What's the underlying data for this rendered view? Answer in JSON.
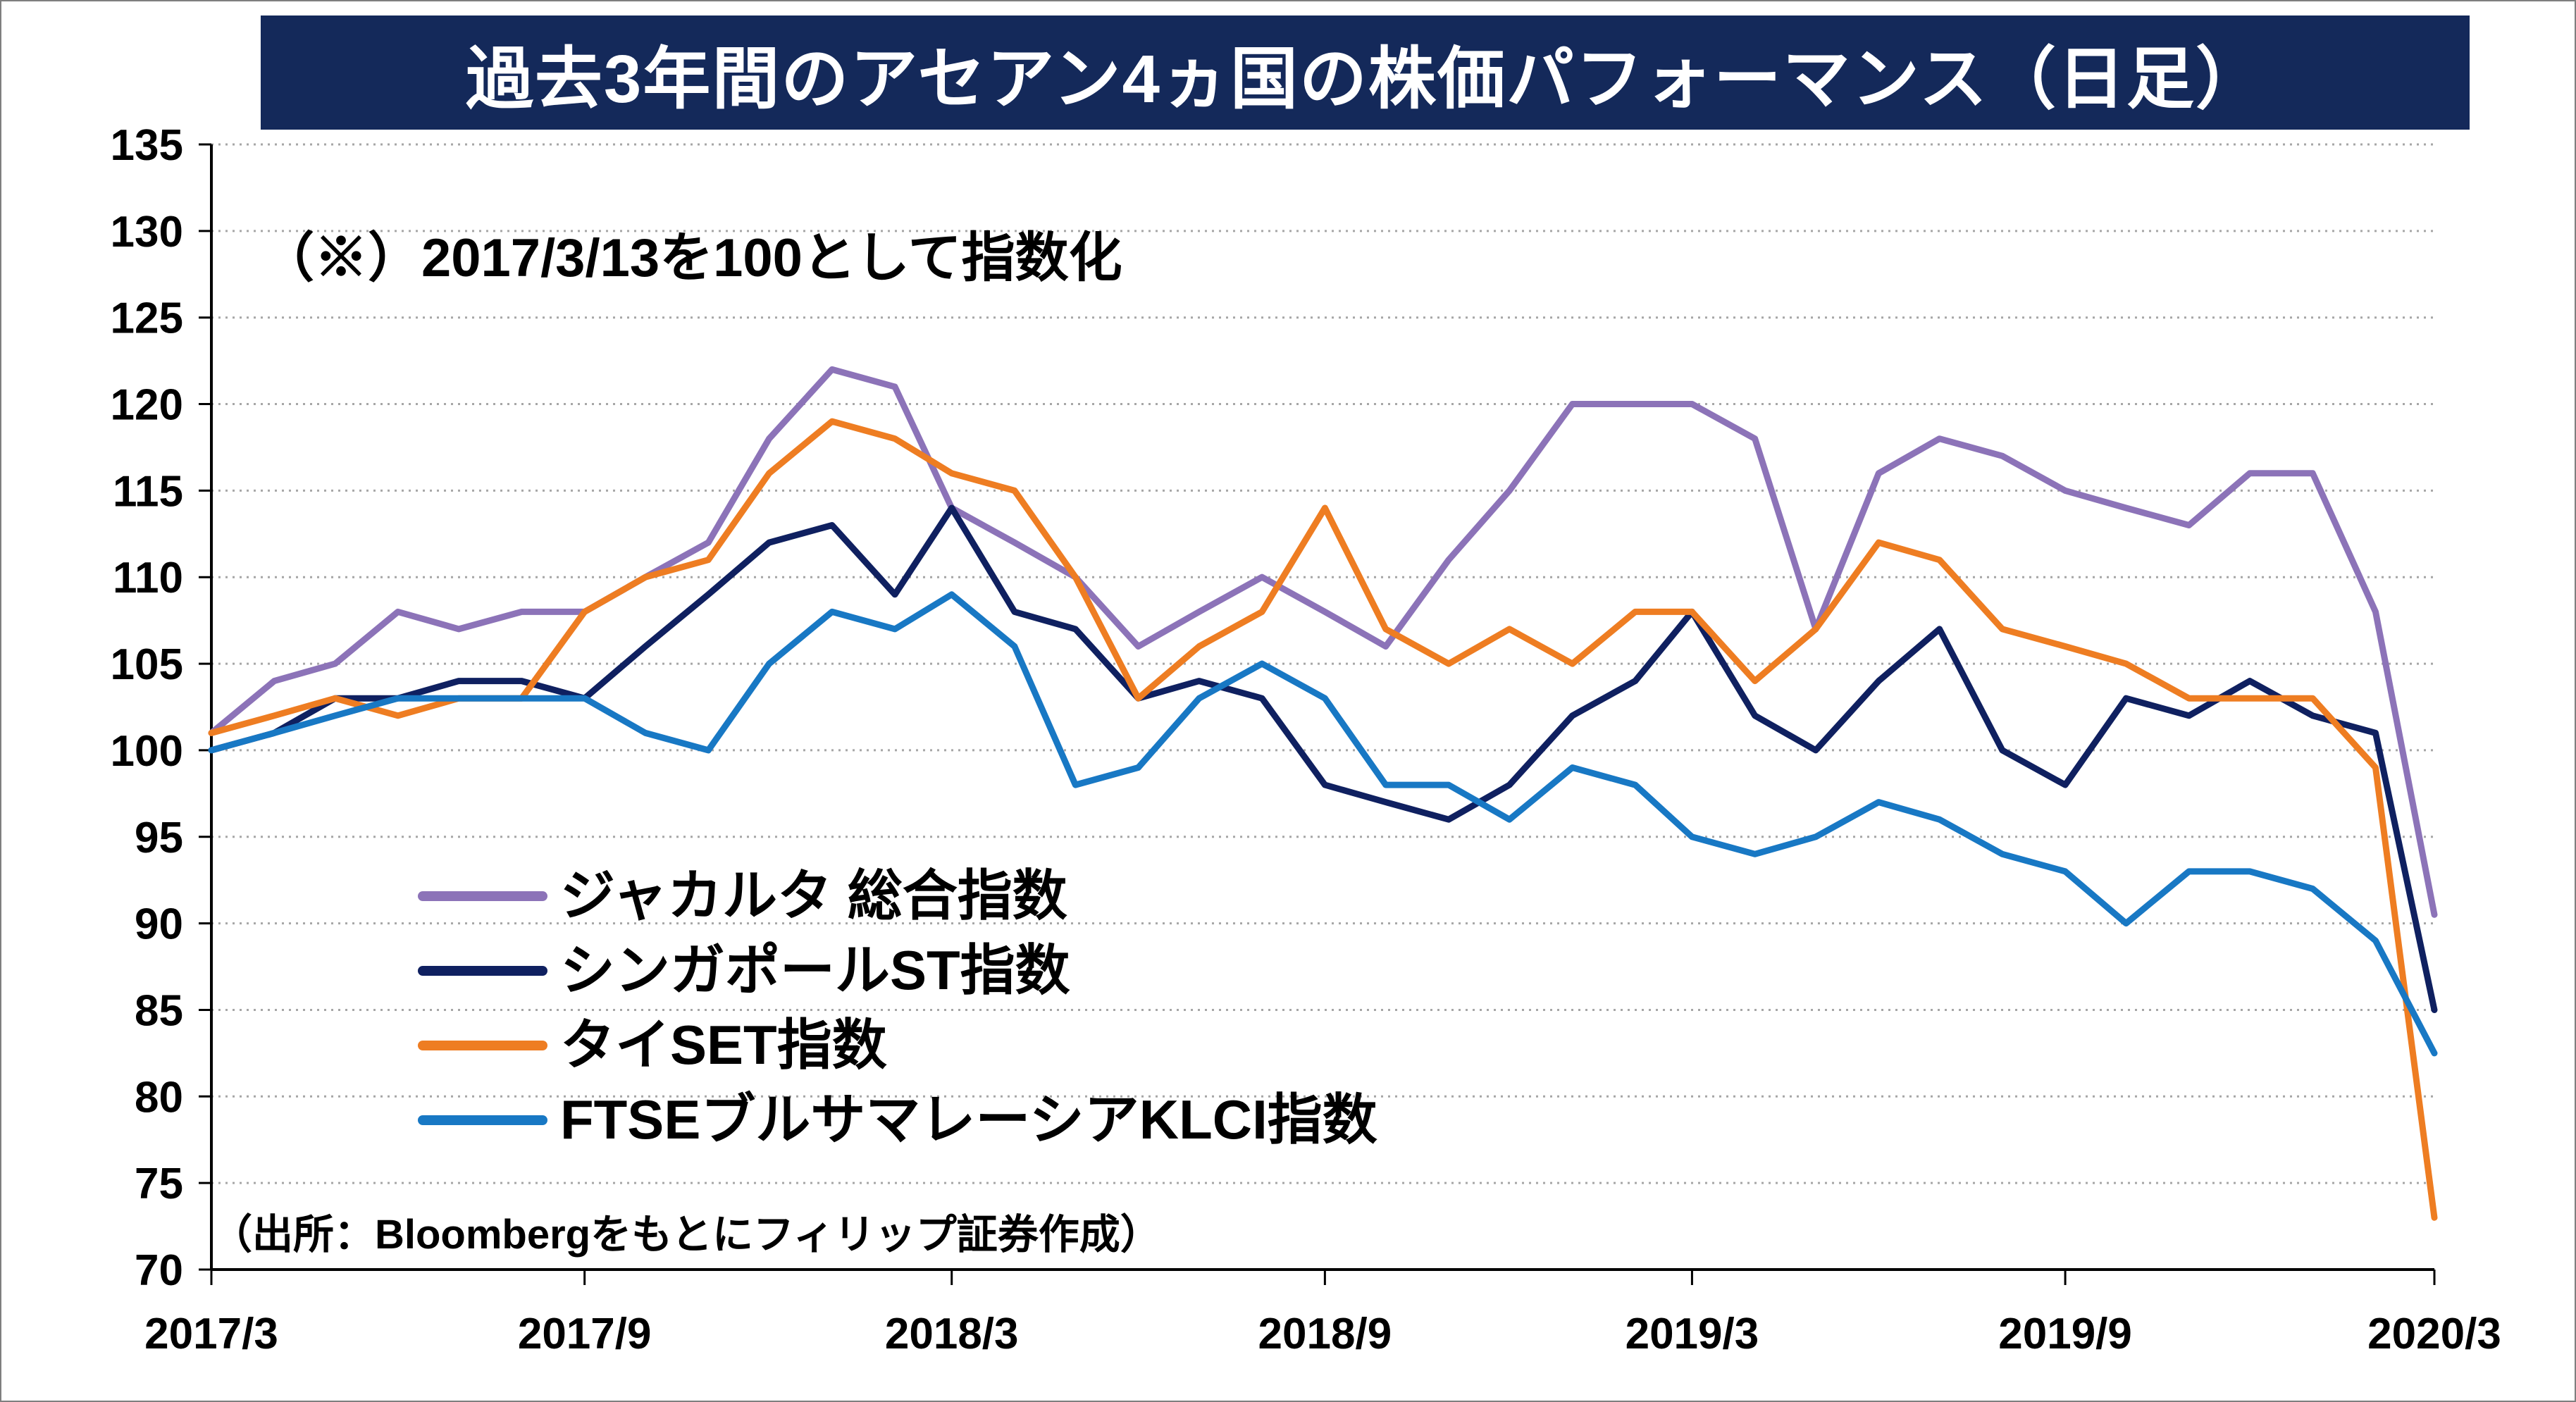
{
  "chart_data": {
    "type": "line",
    "title": "過去3年間のアセアン4ヵ国の株価パフォーマンス（日足）",
    "note": "（※）2017/3/13を100として指数化",
    "source": "（出所：Bloombergをもとにフィリップ証券作成）",
    "xlabel": "",
    "ylabel": "",
    "x_ticks": [
      "2017/3",
      "2017/9",
      "2018/3",
      "2018/9",
      "2019/3",
      "2019/9",
      "2020/3"
    ],
    "x_range": [
      "2017-03-13",
      "2020-03-13"
    ],
    "ylim": [
      70,
      135
    ],
    "y_ticks": [
      70,
      75,
      80,
      85,
      90,
      95,
      100,
      105,
      110,
      115,
      120,
      125,
      130,
      135
    ],
    "grid": "horizontal-dotted",
    "legend_position": "lower-left",
    "x": [
      "2017-03-13",
      "2017-04-13",
      "2017-05-13",
      "2017-06-13",
      "2017-07-13",
      "2017-08-13",
      "2017-09-13",
      "2017-10-13",
      "2017-11-13",
      "2017-12-13",
      "2018-01-13",
      "2018-02-13",
      "2018-03-13",
      "2018-04-13",
      "2018-05-13",
      "2018-06-13",
      "2018-07-13",
      "2018-08-13",
      "2018-09-13",
      "2018-10-13",
      "2018-11-13",
      "2018-12-13",
      "2019-01-13",
      "2019-02-13",
      "2019-03-13",
      "2019-04-13",
      "2019-05-13",
      "2019-06-13",
      "2019-07-13",
      "2019-08-13",
      "2019-09-13",
      "2019-10-13",
      "2019-11-13",
      "2019-12-13",
      "2020-01-13",
      "2020-02-13",
      "2020-03-13"
    ],
    "series": [
      {
        "name": "ジャカルタ 総合指数",
        "color": "#8c73b8",
        "values": [
          101,
          104,
          105,
          108,
          107,
          108,
          108,
          110,
          112,
          118,
          122,
          121,
          114,
          112,
          110,
          106,
          108,
          110,
          108,
          106,
          111,
          115,
          120,
          120,
          120,
          118,
          107,
          116,
          118,
          117,
          115,
          114,
          113,
          116,
          116,
          108,
          90.5
        ]
      },
      {
        "name": "シンガポールST指数",
        "color": "#0f2060",
        "values": [
          100,
          101,
          103,
          103,
          104,
          104,
          103,
          106,
          109,
          112,
          113,
          109,
          114,
          108,
          107,
          103,
          104,
          103,
          98,
          97,
          96,
          98,
          102,
          104,
          108,
          102,
          100,
          104,
          107,
          100,
          98,
          103,
          102,
          104,
          102,
          101,
          85
        ]
      },
      {
        "name": "タイSET指数",
        "color": "#ee7d22",
        "values": [
          101,
          102,
          103,
          102,
          103,
          103,
          108,
          110,
          111,
          116,
          119,
          118,
          116,
          115,
          110,
          103,
          106,
          108,
          114,
          107,
          105,
          107,
          105,
          108,
          108,
          104,
          107,
          112,
          111,
          107,
          106,
          105,
          103,
          103,
          103,
          99,
          73
        ]
      },
      {
        "name": "FTSEブルサマレーシアKLCI指数",
        "color": "#1878c4",
        "values": [
          100,
          101,
          102,
          103,
          103,
          103,
          103,
          101,
          100,
          105,
          108,
          107,
          109,
          106,
          98,
          99,
          103,
          105,
          103,
          98,
          98,
          96,
          99,
          98,
          95,
          94,
          95,
          97,
          96,
          94,
          93,
          90,
          93,
          93,
          92,
          89,
          82.5
        ]
      }
    ]
  }
}
